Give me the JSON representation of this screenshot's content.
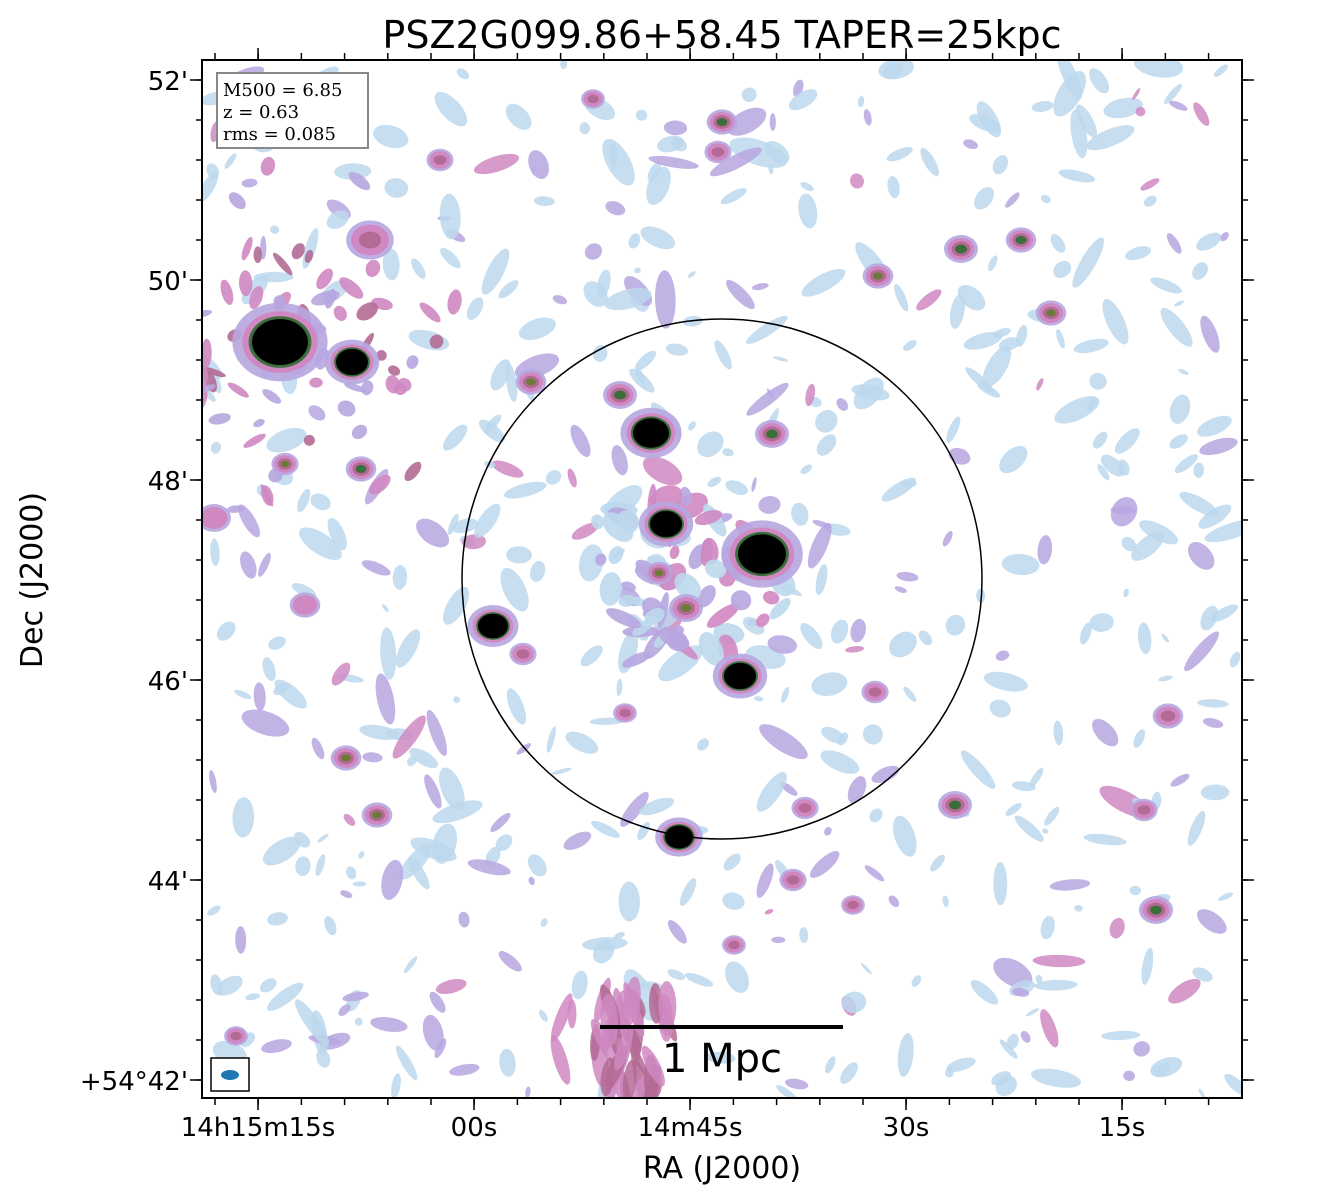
{
  "title": "PSZ2G099.86+58.45 TAPER=25kpc",
  "info_box": {
    "lines": [
      "M500 = 6.85",
      "z = 0.63",
      "rms = 0.085"
    ]
  },
  "x_axis": {
    "label": "RA (J2000)",
    "ticks": [
      "14h15m15s",
      "00s",
      "14m45s",
      "30s",
      "15s"
    ]
  },
  "y_axis": {
    "label": "Dec (J2000)",
    "ticks": [
      "52'",
      "50'",
      "48'",
      "46'",
      "44'",
      "+54°42'"
    ]
  },
  "scale_bar": {
    "label": "1 Mpc"
  },
  "colors": {
    "faint": "#bcd8ec",
    "lavender": "#b7a6e0",
    "pink": "#cf88c2",
    "mauve": "#b36a94",
    "olive": "#6d7a3a",
    "green": "#3a6e3a",
    "core": "#000000",
    "beam": "#1f77b4"
  }
}
